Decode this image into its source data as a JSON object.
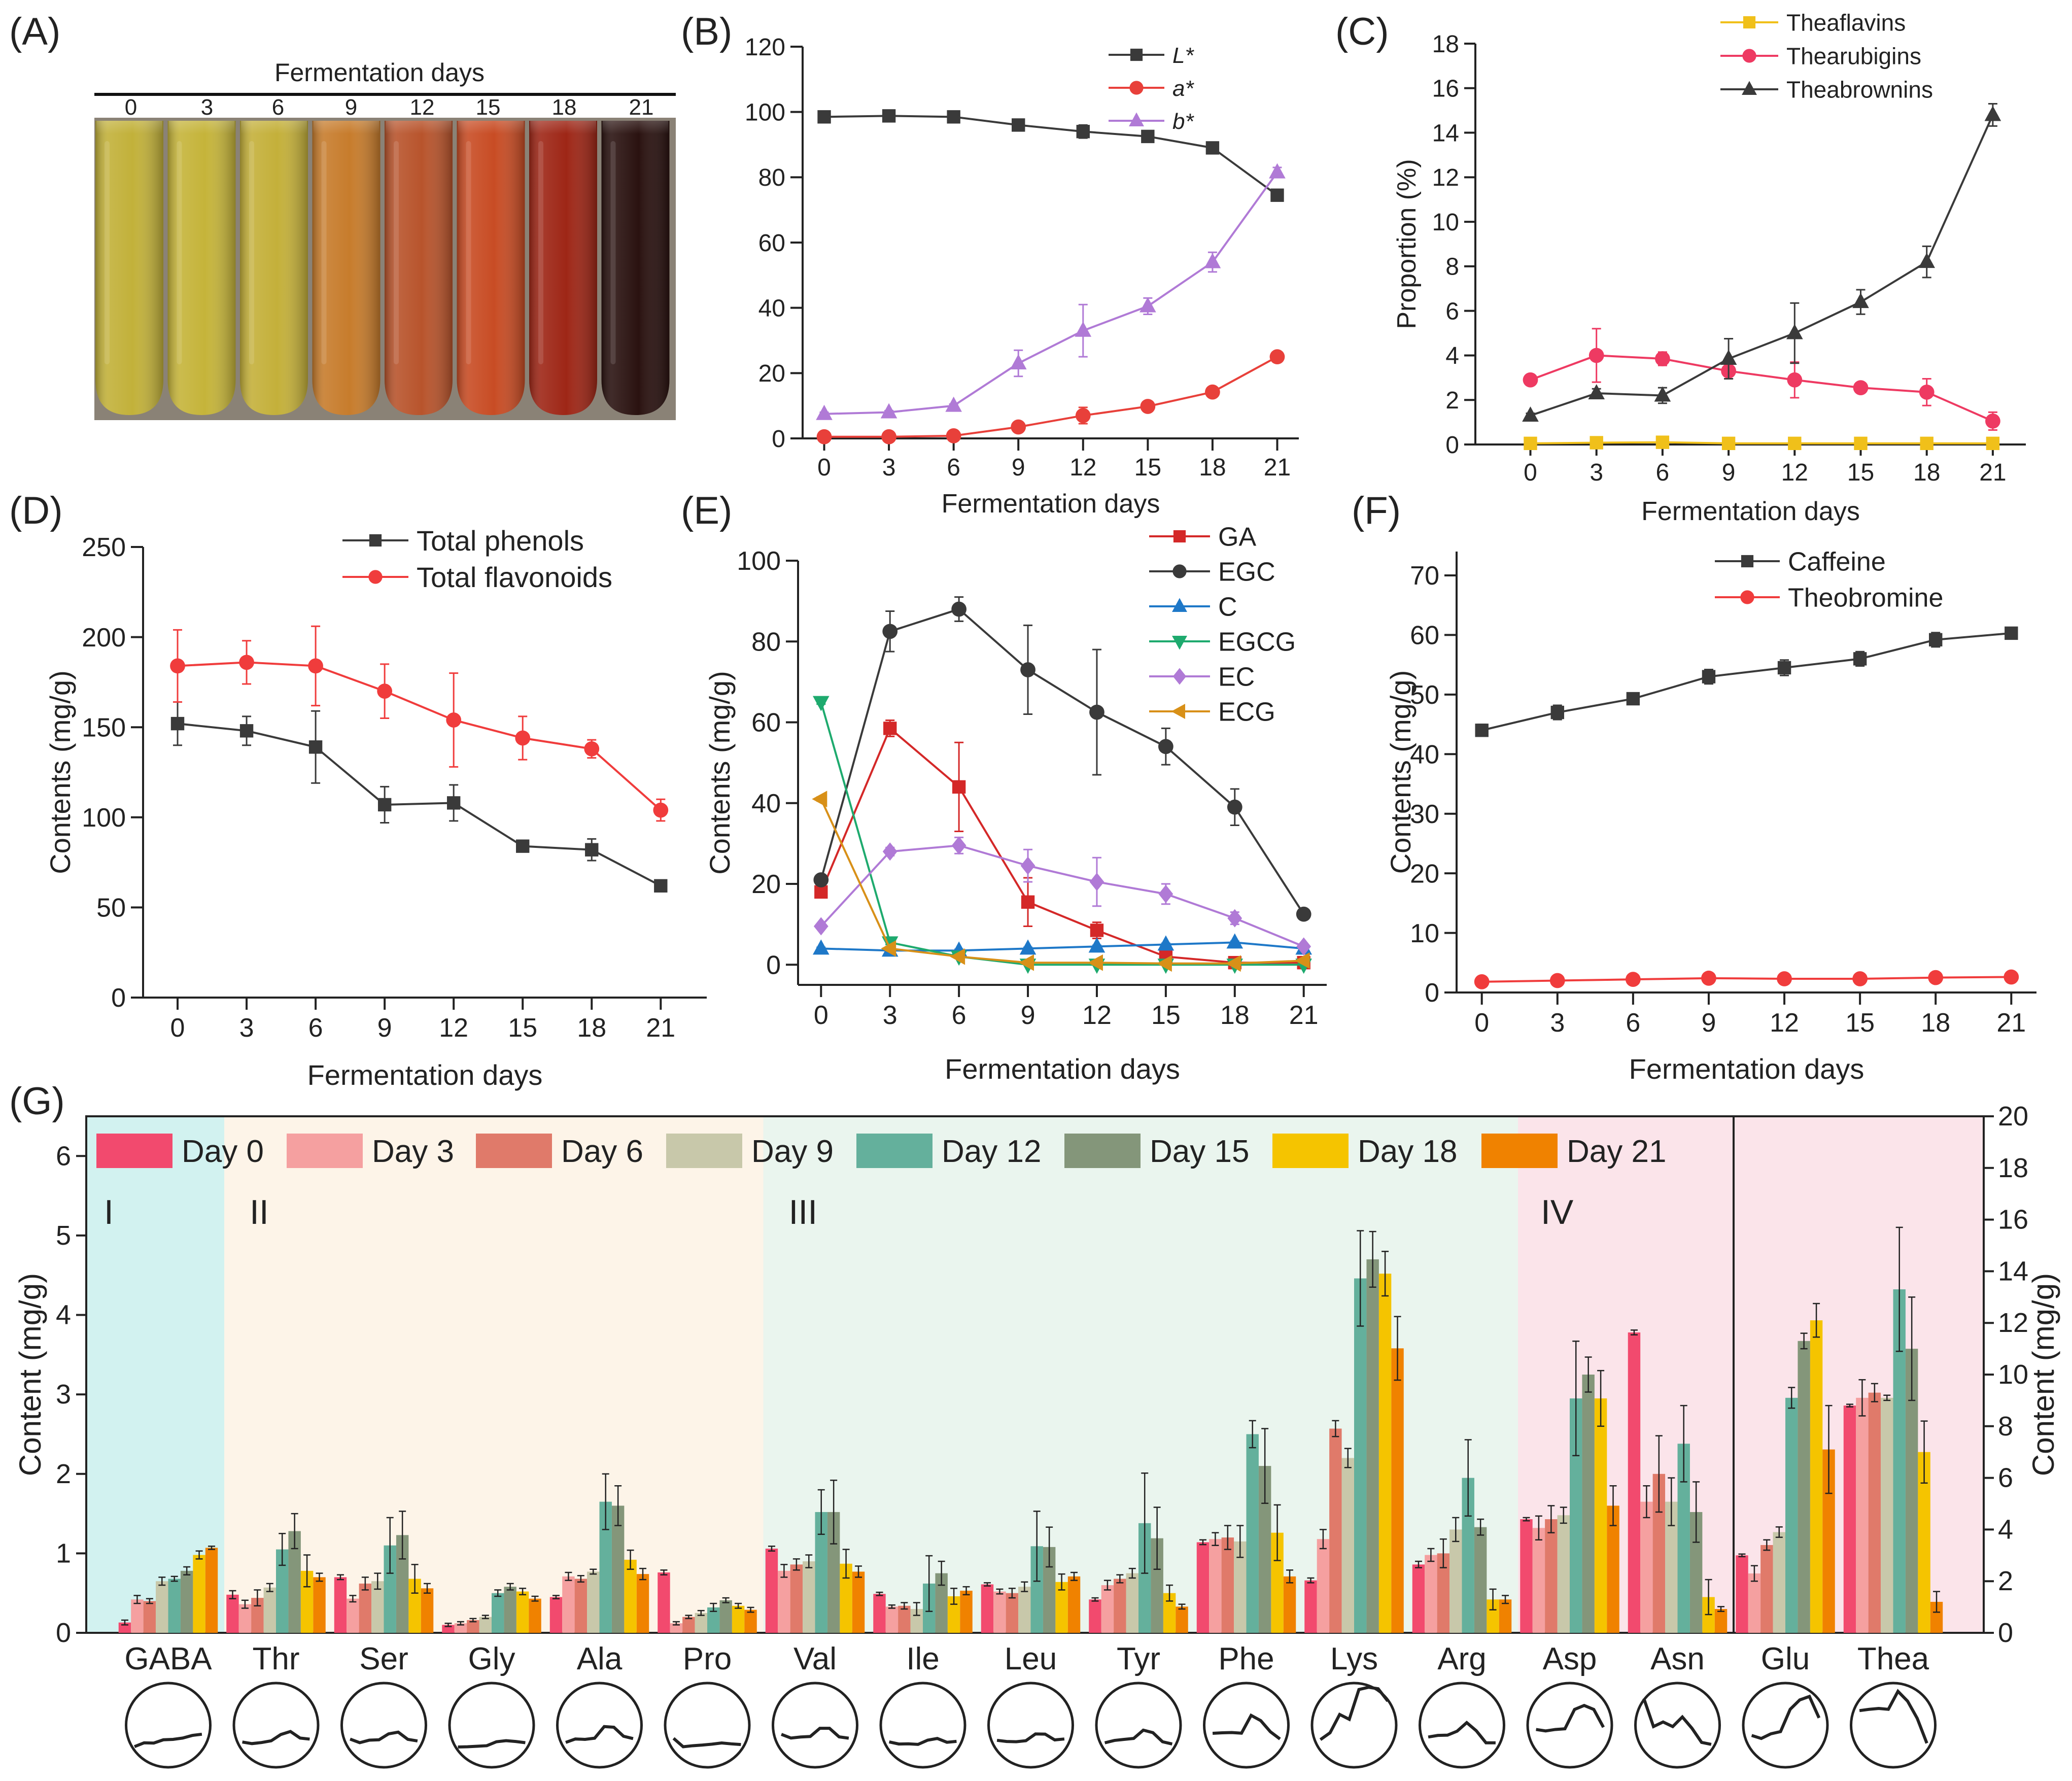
{
  "figure": {
    "panels": {
      "A": "(A)",
      "B": "(B)",
      "C": "(C)",
      "D": "(D)",
      "E": "(E)",
      "F": "(F)",
      "G": "(G)"
    },
    "x_axis_label": "Fermentation days"
  },
  "tubes": {
    "header": "Fermentation days",
    "labels": [
      "0",
      "3",
      "6",
      "9",
      "12",
      "15",
      "18",
      "21"
    ],
    "colors": [
      "#c2b13a",
      "#c5b43a",
      "#c4b03a",
      "#c77c2c",
      "#b8542c",
      "#c84c24",
      "#9e2616",
      "#2a1210"
    ]
  },
  "chart_data": [
    {
      "id": "B",
      "type": "line",
      "x": [
        0,
        3,
        6,
        9,
        12,
        15,
        18,
        21
      ],
      "xlabel": "Fermentation days",
      "ylabel": "",
      "xlim": [
        -1,
        22
      ],
      "ylim": [
        0,
        120
      ],
      "yticks": [
        0,
        20,
        40,
        60,
        80,
        100,
        120
      ],
      "series": [
        {
          "name": "L*",
          "color": "#3a3a3a",
          "marker": "square",
          "values": [
            98.5,
            98.8,
            98.5,
            96,
            94,
            92.5,
            89,
            74.5
          ],
          "errors": [
            1,
            1,
            1,
            1,
            2,
            1,
            1,
            1.5
          ]
        },
        {
          "name": "a*",
          "color": "#e8403a",
          "marker": "circle",
          "values": [
            0.5,
            0.5,
            0.8,
            3.5,
            7,
            9.8,
            14.2,
            25
          ],
          "errors": [
            0.3,
            0.3,
            0.3,
            0.5,
            2.5,
            0.5,
            0.5,
            0.5
          ]
        },
        {
          "name": "b*",
          "color": "#b07ad6",
          "marker": "triangle-up",
          "values": [
            7.5,
            8,
            10,
            23,
            33,
            40.5,
            54,
            81.5
          ],
          "errors": [
            0.5,
            0.5,
            0.5,
            4,
            8,
            2.5,
            3,
            1.5
          ]
        }
      ]
    },
    {
      "id": "C",
      "type": "line",
      "x": [
        0,
        3,
        6,
        9,
        12,
        15,
        18,
        21
      ],
      "xlabel": "Fermentation days",
      "ylabel": "Proportion (%)",
      "xlim": [
        -2.5,
        22.5
      ],
      "ylim": [
        0,
        18
      ],
      "yticks": [
        0,
        2,
        4,
        6,
        8,
        10,
        12,
        14,
        16,
        18
      ],
      "series": [
        {
          "name": "Theaflavins",
          "color": "#f0c01a",
          "marker": "square",
          "values": [
            0.05,
            0.08,
            0.1,
            0.05,
            0.05,
            0.05,
            0.05,
            0.05
          ],
          "errors": [
            0.02,
            0.02,
            0.05,
            0.02,
            0.02,
            0.02,
            0.02,
            0.02
          ]
        },
        {
          "name": "Thearubigins",
          "color": "#ee3a62",
          "marker": "circle",
          "values": [
            2.9,
            4.0,
            3.85,
            3.3,
            2.9,
            2.55,
            2.35,
            1.05
          ],
          "errors": [
            0.15,
            1.2,
            0.3,
            0.35,
            0.8,
            0.15,
            0.6,
            0.4
          ]
        },
        {
          "name": "Theabrownins",
          "color": "#3a3a3a",
          "marker": "triangle-up",
          "values": [
            1.3,
            2.3,
            2.2,
            3.85,
            5.0,
            6.4,
            8.2,
            14.8
          ],
          "errors": [
            0.1,
            0.2,
            0.35,
            0.9,
            1.35,
            0.55,
            0.7,
            0.5
          ]
        }
      ]
    },
    {
      "id": "D",
      "type": "line",
      "x": [
        0,
        3,
        6,
        9,
        12,
        15,
        18,
        21
      ],
      "xlabel": "Fermentation days",
      "ylabel": "Contents (mg/g)",
      "xlim": [
        -1.5,
        23
      ],
      "ylim": [
        0,
        250
      ],
      "yticks": [
        0,
        50,
        100,
        150,
        200,
        250
      ],
      "series": [
        {
          "name": "Total phenols",
          "color": "#3a3a3a",
          "marker": "square",
          "values": [
            152,
            148,
            139,
            107,
            108,
            84,
            82,
            62
          ],
          "errors": [
            12,
            8,
            20,
            10,
            10,
            2,
            6,
            2
          ]
        },
        {
          "name": "Total flavonoids",
          "color": "#f03c3c",
          "marker": "circle",
          "values": [
            184,
            186,
            184,
            170,
            154,
            144,
            138,
            104
          ],
          "errors": [
            20,
            12,
            22,
            15,
            26,
            12,
            5,
            6
          ]
        }
      ]
    },
    {
      "id": "E",
      "type": "line",
      "x": [
        0,
        3,
        6,
        9,
        12,
        15,
        18,
        21
      ],
      "xlabel": "Fermentation days",
      "ylabel": "Contents (mg/g)",
      "xlim": [
        -1,
        22
      ],
      "ylim": [
        -5,
        100
      ],
      "yticks": [
        0,
        20,
        40,
        60,
        80,
        100
      ],
      "series": [
        {
          "name": "GA",
          "color": "#d42828",
          "marker": "square",
          "values": [
            18,
            58.5,
            44,
            15.5,
            8.5,
            2,
            0.5,
            0.5
          ],
          "errors": [
            1,
            2,
            11,
            6,
            2,
            1,
            0.5,
            0.5
          ]
        },
        {
          "name": "EGC",
          "color": "#3a3a3a",
          "marker": "circle",
          "values": [
            21,
            82.5,
            88,
            73,
            62.5,
            54,
            39,
            12.5
          ],
          "errors": [
            1,
            5,
            3,
            11,
            15.5,
            4.5,
            4.5,
            1
          ]
        },
        {
          "name": "C",
          "color": "#1e78c8",
          "marker": "triangle-up",
          "values": [
            4,
            3.5,
            3.5,
            4,
            4.5,
            5,
            5.5,
            4
          ],
          "errors": [
            0.3,
            0.3,
            0.3,
            0.3,
            0.3,
            0.3,
            0.3,
            0.3
          ]
        },
        {
          "name": "EGCG",
          "color": "#1eaa6e",
          "marker": "triangle-down",
          "values": [
            65,
            5.5,
            2,
            0,
            0,
            0,
            0,
            0
          ],
          "errors": [
            0.5,
            0.5,
            0.3,
            0,
            0,
            0,
            0,
            0
          ]
        },
        {
          "name": "EC",
          "color": "#b07ad6",
          "marker": "diamond",
          "values": [
            9.5,
            28,
            29.5,
            24.5,
            20.5,
            17.5,
            11.5,
            4.5
          ],
          "errors": [
            0.5,
            1,
            2,
            4,
            6,
            2.5,
            1.5,
            0.5
          ]
        },
        {
          "name": "ECG",
          "color": "#d89018",
          "marker": "triangle-left",
          "values": [
            41,
            4,
            2,
            0.5,
            0.5,
            0.3,
            0.3,
            1
          ],
          "errors": [
            0.5,
            0.5,
            0.3,
            0.3,
            0.3,
            0.3,
            0.3,
            0.3
          ]
        }
      ]
    },
    {
      "id": "F",
      "type": "line",
      "x": [
        0,
        3,
        6,
        9,
        12,
        15,
        18,
        21
      ],
      "xlabel": "Fermentation days",
      "ylabel": "Contents (mg/g)",
      "xlim": [
        -1,
        22
      ],
      "ylim": [
        0,
        74
      ],
      "yticks": [
        0,
        10,
        20,
        30,
        40,
        50,
        60,
        70
      ],
      "series": [
        {
          "name": "Caffeine",
          "color": "#3a3a3a",
          "marker": "square",
          "values": [
            44,
            47,
            49.3,
            53,
            54.5,
            56,
            59.2,
            60.3
          ],
          "errors": [
            1,
            1.2,
            0.6,
            1.2,
            1.3,
            1.2,
            1.2,
            0.6
          ]
        },
        {
          "name": "Theobromine",
          "color": "#f03c3c",
          "marker": "circle",
          "values": [
            1.8,
            2,
            2.2,
            2.4,
            2.3,
            2.3,
            2.5,
            2.6
          ],
          "errors": [
            0.2,
            0.2,
            0.2,
            0.2,
            0.2,
            0.2,
            0.2,
            0.2
          ]
        }
      ]
    },
    {
      "id": "G",
      "type": "bar",
      "ylabel": "Content (mg/g)",
      "ylabel_right": "Content (mg/g)",
      "ylim_left": [
        0,
        6.5
      ],
      "yticks_left": [
        0,
        1,
        2,
        3,
        4,
        5,
        6
      ],
      "ylim_right": [
        0,
        20
      ],
      "yticks_right": [
        0,
        2,
        4,
        6,
        8,
        10,
        12,
        14,
        16,
        18,
        20
      ],
      "legend": [
        "Day 0",
        "Day 3",
        "Day 6",
        "Day 9",
        "Day 12",
        "Day 15",
        "Day 18",
        "Day 21"
      ],
      "colors": [
        "#f24a6e",
        "#f5a0a0",
        "#e07a6a",
        "#c8c8aa",
        "#64b09c",
        "#84967a",
        "#f5c400",
        "#f08200"
      ],
      "groups": [
        {
          "label": "I",
          "start": 0,
          "end": 1,
          "color": "#d2f2f0"
        },
        {
          "label": "II",
          "start": 1,
          "end": 6,
          "color": "#fdf4e8"
        },
        {
          "label": "III",
          "start": 6,
          "end": 13,
          "color": "#eaf5ee"
        },
        {
          "label": "IV",
          "start": 13,
          "end": 15,
          "color": "#fbe4ea"
        },
        {
          "label": "",
          "start": 15,
          "end": 17,
          "color": "#fbe4ea"
        }
      ],
      "categories": [
        "GABA",
        "Thr",
        "Ser",
        "Gly",
        "Ala",
        "Pro",
        "Val",
        "Ile",
        "Leu",
        "Tyr",
        "Phe",
        "Lys",
        "Arg",
        "Asp",
        "Asn",
        "Glu",
        "Thea"
      ],
      "axis": [
        "left",
        "left",
        "left",
        "left",
        "left",
        "left",
        "left",
        "left",
        "left",
        "left",
        "left",
        "left",
        "left",
        "left",
        "left",
        "right",
        "right"
      ],
      "values": [
        [
          0.13,
          0.42,
          0.4,
          0.65,
          0.68,
          0.78,
          0.98,
          1.07
        ],
        [
          0.48,
          0.36,
          0.44,
          0.57,
          1.05,
          1.28,
          0.78,
          0.7
        ],
        [
          0.7,
          0.43,
          0.62,
          0.65,
          1.1,
          1.23,
          0.68,
          0.56
        ],
        [
          0.1,
          0.12,
          0.16,
          0.2,
          0.5,
          0.58,
          0.52,
          0.43
        ],
        [
          0.45,
          0.71,
          0.68,
          0.77,
          1.65,
          1.6,
          0.92,
          0.74
        ],
        [
          0.76,
          0.12,
          0.2,
          0.25,
          0.32,
          0.41,
          0.34,
          0.29
        ],
        [
          1.06,
          0.78,
          0.86,
          0.9,
          1.52,
          1.52,
          0.87,
          0.77
        ],
        [
          0.49,
          0.33,
          0.34,
          0.3,
          0.62,
          0.75,
          0.46,
          0.53
        ],
        [
          0.61,
          0.52,
          0.5,
          0.58,
          1.09,
          1.08,
          0.64,
          0.71
        ],
        [
          0.42,
          0.6,
          0.68,
          0.75,
          1.38,
          1.19,
          0.5,
          0.33
        ],
        [
          1.14,
          1.18,
          1.2,
          1.15,
          2.5,
          2.1,
          1.26,
          0.71
        ],
        [
          0.66,
          1.18,
          2.57,
          2.2,
          4.46,
          4.7,
          4.52,
          3.58
        ],
        [
          0.86,
          0.98,
          1.0,
          1.3,
          1.95,
          1.33,
          0.42,
          0.42
        ],
        [
          1.43,
          1.32,
          1.43,
          1.48,
          2.95,
          3.25,
          2.95,
          1.6
        ],
        [
          3.78,
          1.65,
          2.0,
          1.65,
          2.38,
          1.52,
          0.45,
          0.3
        ],
        [
          3.0,
          2.3,
          3.4,
          3.9,
          9.1,
          11.3,
          12.1,
          7.1
        ],
        [
          8.8,
          9.1,
          9.3,
          9.1,
          13.3,
          11.0,
          7.0,
          1.2
        ]
      ],
      "errors": [
        [
          0.03,
          0.05,
          0.03,
          0.05,
          0.03,
          0.05,
          0.05,
          0.02
        ],
        [
          0.05,
          0.05,
          0.1,
          0.05,
          0.2,
          0.22,
          0.2,
          0.05
        ],
        [
          0.03,
          0.04,
          0.08,
          0.1,
          0.35,
          0.3,
          0.18,
          0.06
        ],
        [
          0.02,
          0.02,
          0.02,
          0.02,
          0.04,
          0.04,
          0.04,
          0.03
        ],
        [
          0.02,
          0.05,
          0.04,
          0.03,
          0.35,
          0.25,
          0.12,
          0.07
        ],
        [
          0.03,
          0.02,
          0.02,
          0.03,
          0.05,
          0.03,
          0.03,
          0.03
        ],
        [
          0.03,
          0.08,
          0.07,
          0.08,
          0.28,
          0.4,
          0.18,
          0.07
        ],
        [
          0.02,
          0.02,
          0.04,
          0.08,
          0.35,
          0.15,
          0.1,
          0.05
        ],
        [
          0.02,
          0.03,
          0.06,
          0.06,
          0.44,
          0.25,
          0.1,
          0.05
        ],
        [
          0.02,
          0.06,
          0.05,
          0.06,
          0.63,
          0.39,
          0.1,
          0.03
        ],
        [
          0.03,
          0.08,
          0.15,
          0.2,
          0.17,
          0.47,
          0.35,
          0.08
        ],
        [
          0.03,
          0.12,
          0.1,
          0.12,
          0.6,
          0.35,
          0.28,
          0.4
        ],
        [
          0.04,
          0.08,
          0.18,
          0.15,
          0.48,
          0.1,
          0.13,
          0.05
        ],
        [
          0.02,
          0.15,
          0.17,
          0.1,
          0.72,
          0.22,
          0.35,
          0.25
        ],
        [
          0.03,
          0.2,
          0.48,
          0.3,
          0.48,
          0.38,
          0.22,
          0.03
        ],
        [
          0.05,
          0.3,
          0.2,
          0.2,
          0.4,
          0.3,
          0.65,
          1.7
        ],
        [
          0.05,
          0.7,
          0.35,
          0.1,
          2.4,
          2.0,
          1.2,
          0.4
        ]
      ]
    }
  ]
}
